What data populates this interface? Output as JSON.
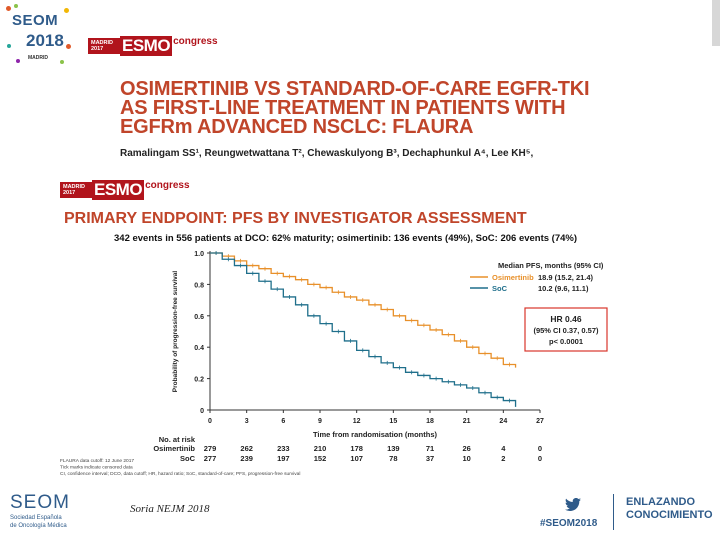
{
  "branding": {
    "seom_word": "SEOM",
    "seom_year": "2018",
    "seom_city": "MADRID",
    "esmo_box_line1": "MADRID",
    "esmo_box_line2": "2017",
    "esmo_word": "ESMO",
    "esmo_congress": "congress",
    "bottom_seom_word": "SEOM",
    "bottom_seom_sub1": "Sociedad Española",
    "bottom_seom_sub2": "de Oncología Médica",
    "hashtag": "#SEOM2018",
    "enlazando_line1": "ENLAZANDO",
    "enlazando_line2": "CONOCIMIENTO",
    "brand_blue": "#2f5b8a",
    "esmo_red": "#b1141c",
    "title_red": "#c0452a"
  },
  "slide": {
    "title_line1": "OSIMERTINIB VS STANDARD-OF-CARE EGFR-TKI",
    "title_line2": "AS FIRST-LINE TREATMENT IN PATIENTS WITH",
    "title_line3": "EGFRm ADVANCED NSCLC: FLAURA",
    "authors": "Ramalingam SS¹, Reungwetwattana T², Chewaskulyong B³, Dechaphunkul A⁴, Lee KH⁵,",
    "endpoint_title": "PRIMARY ENDPOINT: PFS BY INVESTIGATOR ASSESSMENT",
    "endpoint_subtitle": "342 events in 556 patients at DCO: 62% maturity; osimertinib: 136 events (49%), SoC: 206 events (74%)",
    "citation": "Soria NEJM 2018"
  },
  "chart_data": {
    "type": "line",
    "title": "PRIMARY ENDPOINT: PFS BY INVESTIGATOR ASSESSMENT",
    "xlabel": "Time from randomisation (months)",
    "ylabel": "Probability of progression-free survival",
    "xlim": [
      0,
      27
    ],
    "ylim": [
      0,
      1.0
    ],
    "xticks": [
      0,
      3,
      6,
      9,
      12,
      15,
      18,
      21,
      24,
      27
    ],
    "yticks": [
      0,
      0.2,
      0.4,
      0.6,
      0.8,
      1.0
    ],
    "ytick_labels": [
      "0",
      "0.2",
      "0.4",
      "0.6",
      "0.8",
      "1.0"
    ],
    "legend_header": "Median PFS, months (95% CI)",
    "series": [
      {
        "name": "Osimertinib",
        "color": "#e8902a",
        "median": "18.9 (15.2, 21.4)",
        "x": [
          0,
          1,
          2,
          3,
          4,
          5,
          6,
          7,
          8,
          9,
          10,
          11,
          12,
          13,
          14,
          15,
          16,
          17,
          18,
          19,
          20,
          21,
          22,
          23,
          24,
          25
        ],
        "y": [
          1.0,
          0.98,
          0.95,
          0.92,
          0.9,
          0.87,
          0.85,
          0.83,
          0.8,
          0.78,
          0.75,
          0.72,
          0.7,
          0.67,
          0.64,
          0.6,
          0.57,
          0.54,
          0.51,
          0.48,
          0.44,
          0.4,
          0.36,
          0.33,
          0.29,
          0.27
        ]
      },
      {
        "name": "SoC",
        "color": "#1f6f8b",
        "median": "10.2 (9.6, 11.1)",
        "x": [
          0,
          1,
          2,
          3,
          4,
          5,
          6,
          7,
          8,
          9,
          10,
          11,
          12,
          13,
          14,
          15,
          16,
          17,
          18,
          19,
          20,
          21,
          22,
          23,
          24,
          25
        ],
        "y": [
          1.0,
          0.96,
          0.92,
          0.87,
          0.82,
          0.77,
          0.72,
          0.67,
          0.6,
          0.55,
          0.5,
          0.44,
          0.38,
          0.34,
          0.3,
          0.27,
          0.24,
          0.22,
          0.2,
          0.18,
          0.16,
          0.14,
          0.11,
          0.08,
          0.06,
          0.02
        ]
      }
    ],
    "hazard_ratio": {
      "line1": "HR 0.46",
      "line2": "(95% CI 0.37, 0.57)",
      "line3": "p< 0.0001"
    },
    "risk_table": {
      "header": "No. at risk",
      "rows": [
        {
          "label": "Osimertinib",
          "values": [
            "279",
            "262",
            "233",
            "210",
            "178",
            "139",
            "71",
            "26",
            "4",
            "0"
          ]
        },
        {
          "label": "SoC",
          "values": [
            "277",
            "239",
            "197",
            "152",
            "107",
            "78",
            "37",
            "10",
            "2",
            "0"
          ]
        }
      ]
    },
    "footnotes": [
      "FLAURA data cutoff: 12 June 2017",
      "Tick marks indicate censored data",
      "CI, confidence interval; DCO, data cutoff; HR, hazard ratio; SoC, standard-of-care; PFS, progression-free survival"
    ]
  }
}
